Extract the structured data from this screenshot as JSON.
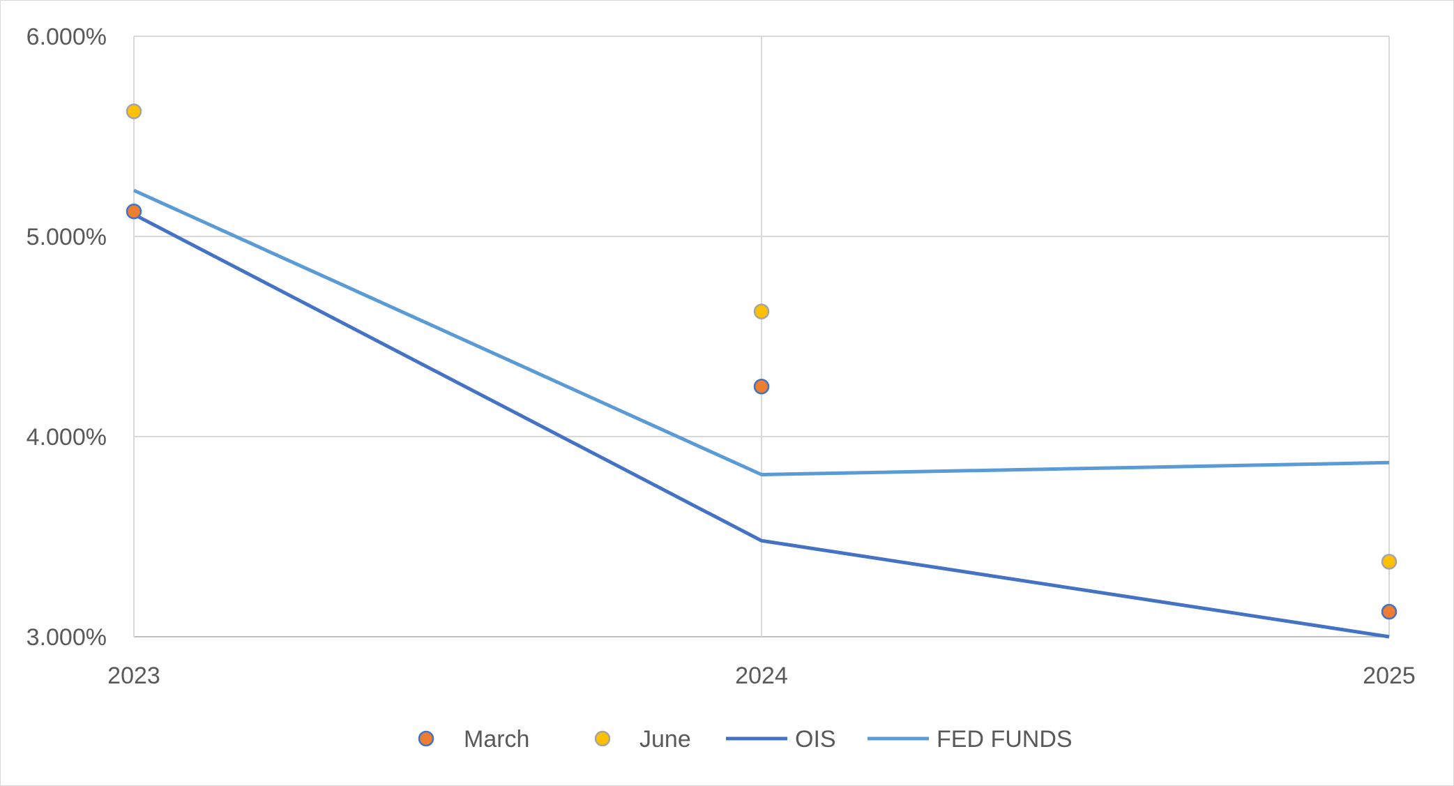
{
  "chart_data": {
    "type": "line",
    "title": "",
    "xlabel": "",
    "ylabel": "",
    "x": [
      "2023",
      "2024",
      "2025"
    ],
    "y_ticks": [
      "3.000%",
      "4.000%",
      "5.000%",
      "6.000%"
    ],
    "y_tick_values": [
      3.0,
      4.0,
      5.0,
      6.0
    ],
    "ylim": [
      3.0,
      6.0
    ],
    "grid": true,
    "legend_position": "bottom",
    "series": [
      {
        "name": "March",
        "kind": "scatter",
        "values": [
          5.125,
          4.25,
          3.125
        ],
        "color": "#ed7d31",
        "edge_color": "#4472c4"
      },
      {
        "name": "June",
        "kind": "scatter",
        "values": [
          5.625,
          4.625,
          3.375
        ],
        "color": "#ffc000",
        "edge_color": "#a5a5a5"
      },
      {
        "name": "OIS",
        "kind": "line",
        "values": [
          5.11,
          3.48,
          3.0
        ],
        "color": "#4472c4"
      },
      {
        "name": "FED FUNDS",
        "kind": "line",
        "values": [
          5.23,
          3.81,
          3.87
        ],
        "color": "#5b9bd5"
      }
    ]
  },
  "colors": {
    "grid": "#d9d9d9",
    "axis": "#bfbfbf",
    "text": "#595959"
  }
}
